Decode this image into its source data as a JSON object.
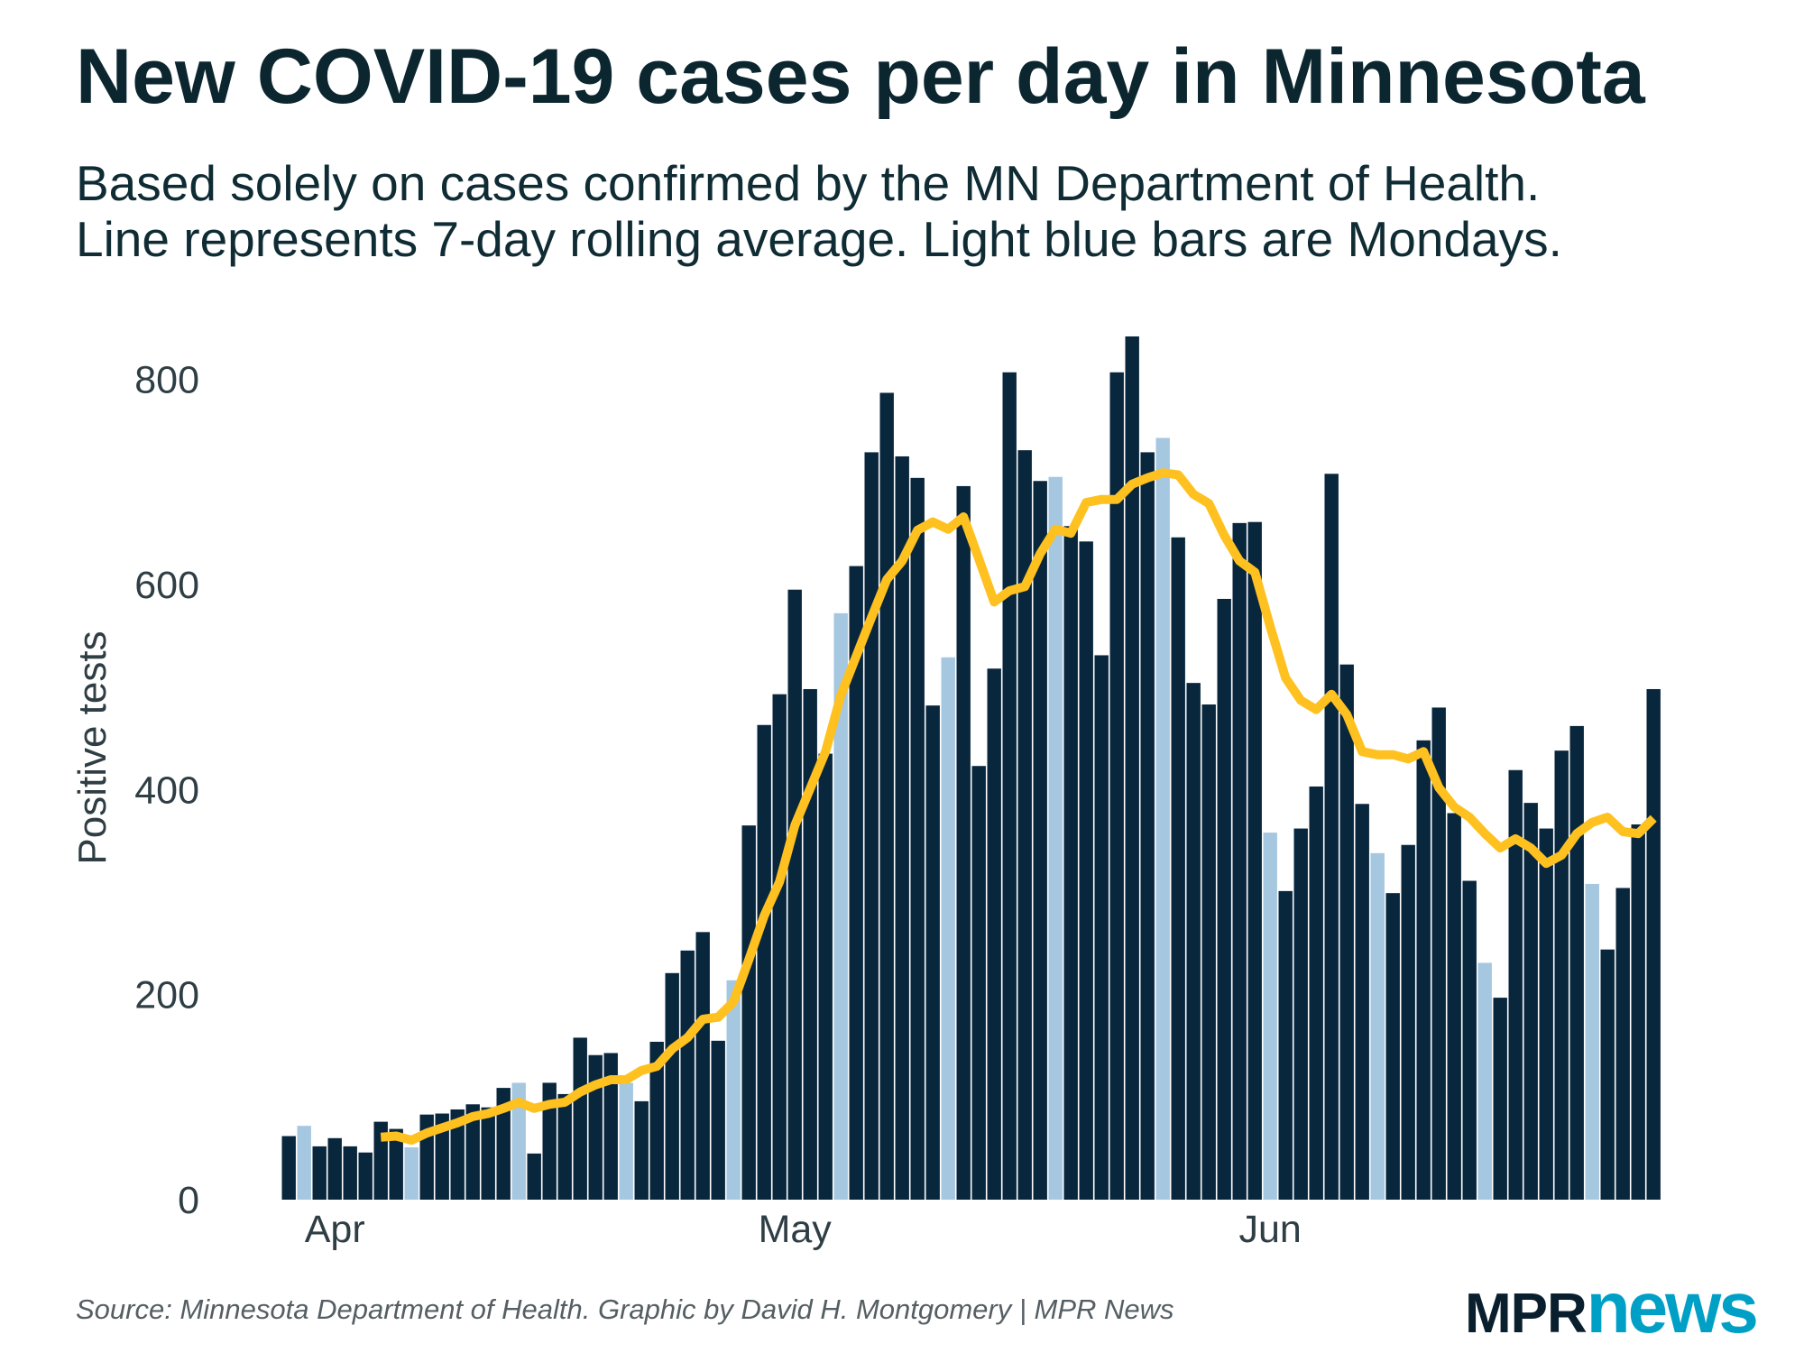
{
  "header": {
    "title": "New COVID-19 cases per day in Minnesota",
    "subtitle_line1": "Based solely on cases confirmed by the MN Department of Health.",
    "subtitle_line2": "Line represents 7-day rolling average. Light blue bars are Mondays."
  },
  "footer": {
    "source": "Source: Minnesota Department of Health. Graphic by David H. Montgomery | MPR News",
    "logo_mpr": "MPR",
    "logo_news": "news"
  },
  "colors": {
    "bar": "#08263c",
    "monday_bar": "#a5c7e0",
    "line": "#fec11f",
    "logo_dark": "#0a1f2e",
    "logo_teal": "#00a0c6"
  },
  "chart_data": {
    "type": "bar",
    "title": "New COVID-19 cases per day in Minnesota",
    "xlabel": "",
    "ylabel": "Positive tests",
    "ylim": [
      0,
      840
    ],
    "y_ticks": [
      0,
      200,
      400,
      600,
      800
    ],
    "x_ticks": [
      {
        "label": "Apr",
        "date": "2020-04-01"
      },
      {
        "label": "May",
        "date": "2020-05-01"
      },
      {
        "label": "Jun",
        "date": "2020-06-01"
      }
    ],
    "grid": false,
    "highlight": "Mondays",
    "x": [
      "2020-03-29",
      "2020-03-30",
      "2020-03-31",
      "2020-04-01",
      "2020-04-02",
      "2020-04-03",
      "2020-04-04",
      "2020-04-05",
      "2020-04-06",
      "2020-04-07",
      "2020-04-08",
      "2020-04-09",
      "2020-04-10",
      "2020-04-11",
      "2020-04-12",
      "2020-04-13",
      "2020-04-14",
      "2020-04-15",
      "2020-04-16",
      "2020-04-17",
      "2020-04-18",
      "2020-04-19",
      "2020-04-20",
      "2020-04-21",
      "2020-04-22",
      "2020-04-23",
      "2020-04-24",
      "2020-04-25",
      "2020-04-26",
      "2020-04-27",
      "2020-04-28",
      "2020-04-29",
      "2020-04-30",
      "2020-05-01",
      "2020-05-02",
      "2020-05-03",
      "2020-05-04",
      "2020-05-05",
      "2020-05-06",
      "2020-05-07",
      "2020-05-08",
      "2020-05-09",
      "2020-05-10",
      "2020-05-11",
      "2020-05-12",
      "2020-05-13",
      "2020-05-14",
      "2020-05-15",
      "2020-05-16",
      "2020-05-17",
      "2020-05-18",
      "2020-05-19",
      "2020-05-20",
      "2020-05-21",
      "2020-05-22",
      "2020-05-23",
      "2020-05-24",
      "2020-05-25",
      "2020-05-26",
      "2020-05-27",
      "2020-05-28",
      "2020-05-29",
      "2020-05-30",
      "2020-05-31",
      "2020-06-01",
      "2020-06-02",
      "2020-06-03",
      "2020-06-04",
      "2020-06-05",
      "2020-06-06",
      "2020-06-07",
      "2020-06-08",
      "2020-06-09",
      "2020-06-10",
      "2020-06-11",
      "2020-06-12",
      "2020-06-13",
      "2020-06-14",
      "2020-06-15",
      "2020-06-16",
      "2020-06-17",
      "2020-06-18",
      "2020-06-19",
      "2020-06-20",
      "2020-06-21",
      "2020-06-22",
      "2020-06-23",
      "2020-06-24",
      "2020-06-25",
      "2020-06-26"
    ],
    "series": [
      {
        "type": "bar",
        "values": [
          62,
          72,
          52,
          60,
          52,
          46,
          76,
          69,
          51,
          83,
          84,
          88,
          93,
          90,
          109,
          114,
          45,
          114,
          103,
          158,
          141,
          143,
          114,
          96,
          154,
          221,
          243,
          261,
          155,
          214,
          365,
          463,
          493,
          595,
          498,
          435,
          572,
          618,
          729,
          787,
          725,
          704,
          482,
          529,
          696,
          423,
          518,
          807,
          731,
          701,
          705,
          657,
          642,
          531,
          807,
          842,
          729,
          743,
          646,
          504,
          483,
          586,
          660,
          661,
          358,
          301,
          362,
          403,
          708,
          522,
          386,
          338,
          299,
          346,
          448,
          480,
          377,
          311,
          231,
          197,
          419,
          387,
          362,
          438,
          462,
          308,
          244,
          304,
          366,
          498
        ]
      },
      {
        "type": "line",
        "values": [
          null,
          null,
          null,
          null,
          null,
          null,
          61,
          62,
          58,
          65,
          70,
          75,
          81,
          84,
          89,
          95,
          89,
          93,
          95,
          105,
          112,
          117,
          117,
          126,
          130,
          147,
          158,
          176,
          178,
          193,
          234,
          277,
          310,
          365,
          401,
          437,
          492,
          530,
          568,
          605,
          623,
          653,
          661,
          654,
          666,
          625,
          583,
          594,
          598,
          630,
          654,
          650,
          680,
          683,
          683,
          698,
          704,
          709,
          707,
          688,
          679,
          648,
          623,
          612,
          559,
          509,
          487,
          478,
          493,
          473,
          437,
          434,
          434,
          430,
          437,
          402,
          383,
          373,
          357,
          343,
          352,
          343,
          328,
          336,
          357,
          368,
          373,
          359,
          357,
          372
        ]
      }
    ]
  }
}
